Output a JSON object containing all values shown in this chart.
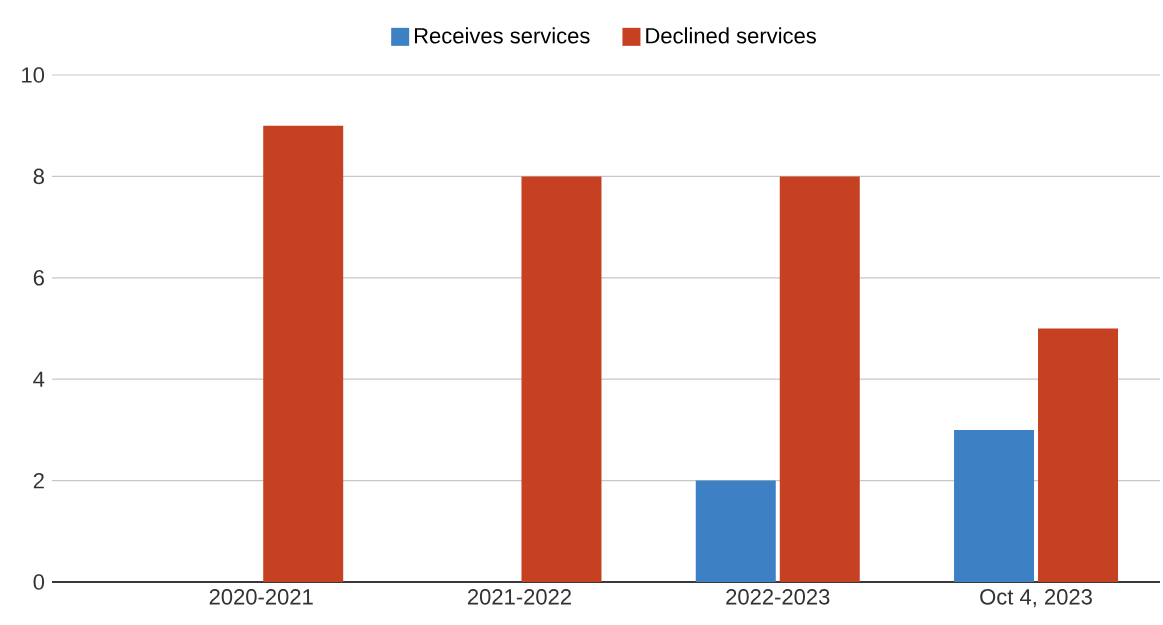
{
  "chart_data": {
    "type": "bar",
    "categories": [
      "2020-2021",
      "2021-2022",
      "2022-2023",
      "Oct 4, 2023"
    ],
    "series": [
      {
        "name": "Receives services",
        "color": "#3d80c3",
        "values": [
          0,
          0,
          2,
          3
        ]
      },
      {
        "name": "Declined services",
        "color": "#c64122",
        "values": [
          9,
          8,
          8,
          5
        ]
      }
    ],
    "ylim": [
      0,
      10
    ],
    "yticks": [
      0,
      2,
      4,
      6,
      8,
      10
    ],
    "grid": "y",
    "legend": "top"
  }
}
